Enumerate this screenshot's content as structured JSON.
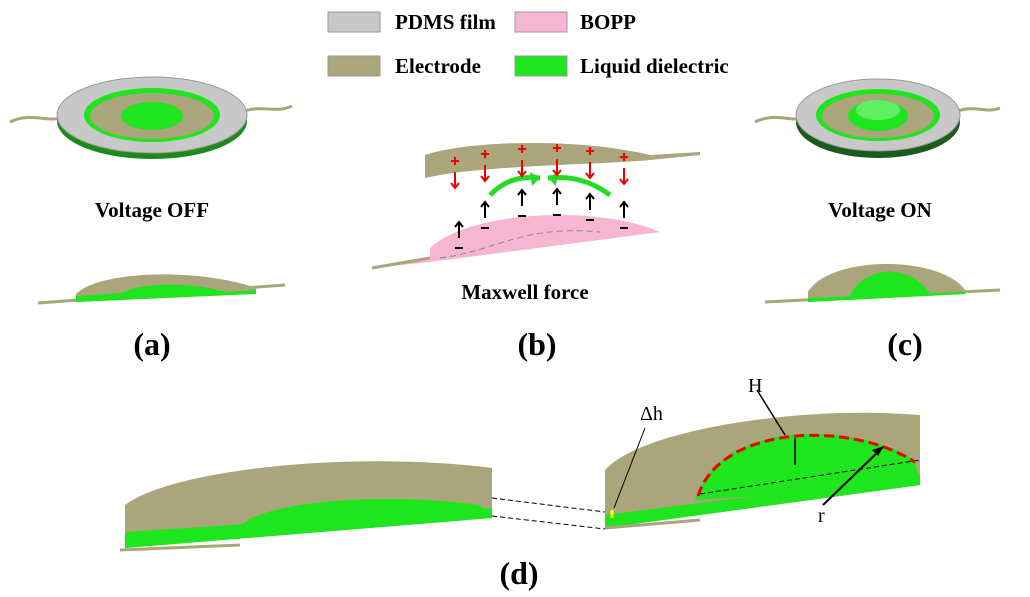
{
  "legend": {
    "items": [
      {
        "label": "PDMS film",
        "color": "#c8c8c8"
      },
      {
        "label": "BOPP",
        "color": "#f6b6d2"
      },
      {
        "label": "Electrode",
        "color": "#aaa57a"
      },
      {
        "label": "Liquid dielectric",
        "color": "#1ee51e"
      }
    ]
  },
  "panels": [
    {
      "caption": "Voltage OFF",
      "label": "(a)"
    },
    {
      "caption": "Maxwell force",
      "label": "(b)"
    },
    {
      "caption": "Voltage ON",
      "label": "(c)"
    },
    {
      "label": "(d)",
      "annotations": [
        "Δh",
        "H",
        "r"
      ]
    }
  ]
}
